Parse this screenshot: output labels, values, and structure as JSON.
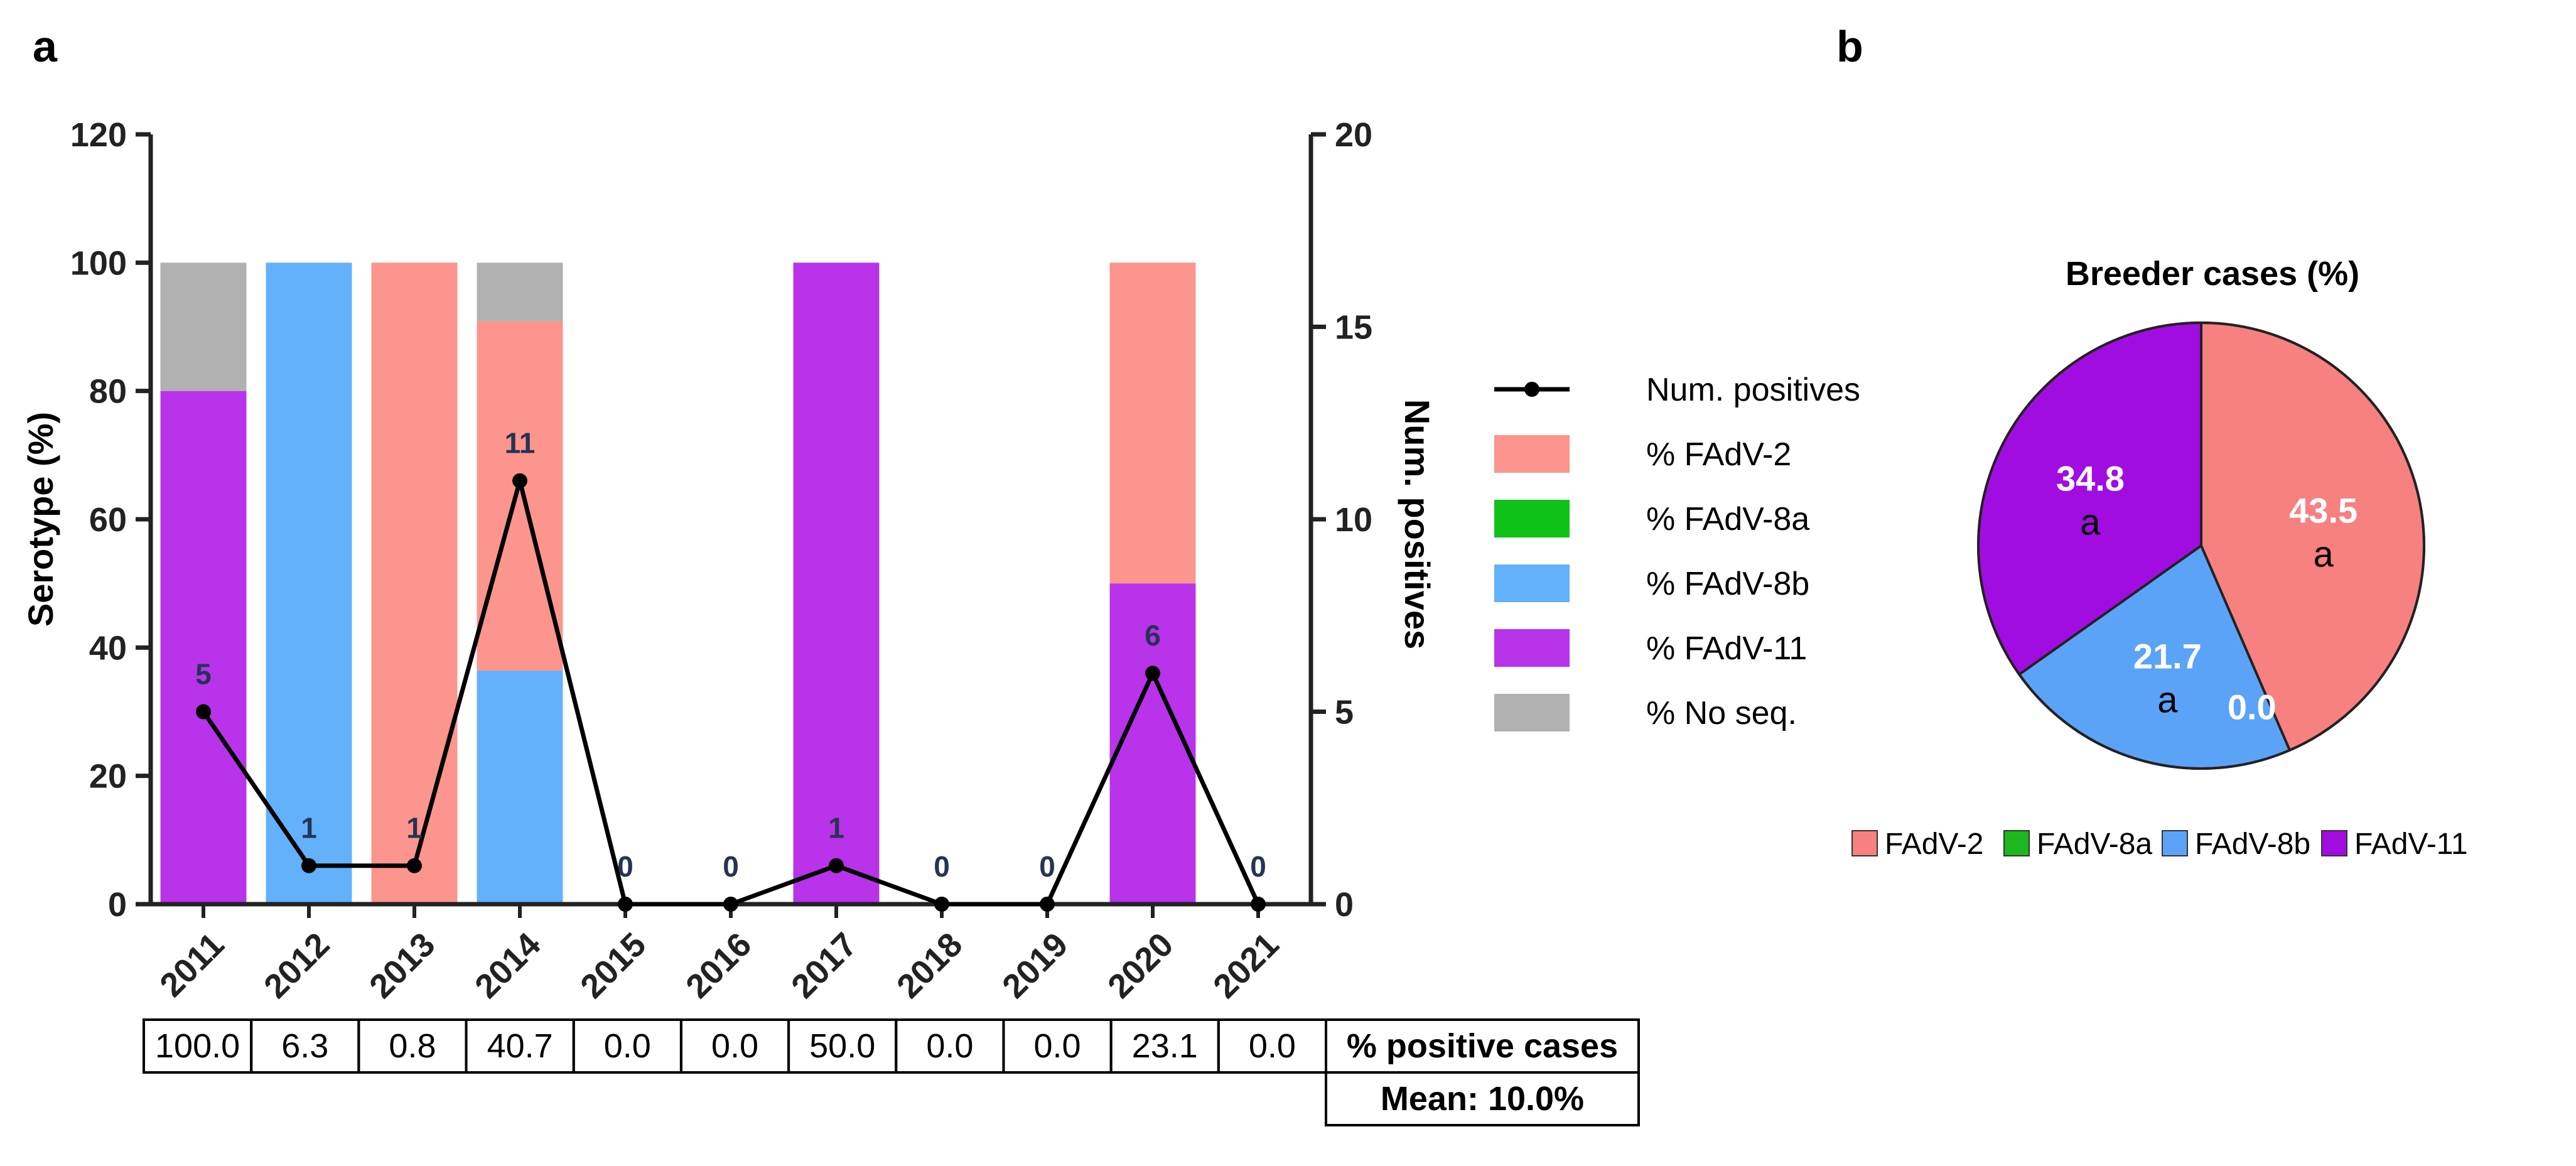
{
  "panels": {
    "a": "a",
    "b": "b"
  },
  "chart_data": [
    {
      "type": "bar",
      "stacked": true,
      "categories": [
        "2011",
        "2012",
        "2013",
        "2014",
        "2015",
        "2016",
        "2017",
        "2018",
        "2019",
        "2020",
        "2021"
      ],
      "series": [
        {
          "name": "% FAdV-11",
          "color": "#b833ea",
          "values": [
            80,
            0,
            0,
            0,
            0,
            0,
            100,
            0,
            0,
            50,
            0
          ]
        },
        {
          "name": "% FAdV-8b",
          "color": "#63b0fb",
          "values": [
            0,
            100,
            0,
            36.4,
            0,
            0,
            0,
            0,
            0,
            0,
            0
          ]
        },
        {
          "name": "% FAdV-8a",
          "color": "#0fc217",
          "values": [
            0,
            0,
            0,
            0,
            0,
            0,
            0,
            0,
            0,
            0,
            0
          ]
        },
        {
          "name": "% FAdV-2",
          "color": "#fc958d",
          "values": [
            0,
            0,
            100,
            54.5,
            0,
            0,
            0,
            0,
            0,
            50,
            0
          ]
        },
        {
          "name": "% No seq.",
          "color": "#b1b1b1",
          "values": [
            20,
            0,
            0,
            9.1,
            0,
            0,
            0,
            0,
            0,
            0,
            0
          ]
        }
      ],
      "line": {
        "name": "Num. positives",
        "color": "#000000",
        "values": [
          5,
          1,
          1,
          11,
          0,
          0,
          1,
          0,
          0,
          6,
          0
        ],
        "labels": [
          "5",
          "1",
          "1",
          "11",
          "0",
          "0",
          "1",
          "0",
          "0",
          "6",
          "0"
        ]
      },
      "ylabel": "Serotype (%)",
      "ylim": [
        0,
        120
      ],
      "yticks": [
        "0",
        "20",
        "40",
        "60",
        "80",
        "100",
        "120"
      ],
      "y2label": "Num. positives",
      "y2lim": [
        0,
        20
      ],
      "y2ticks": [
        "0",
        "5",
        "10",
        "15",
        "20"
      ],
      "legend": {
        "position": "right",
        "items": [
          {
            "name": "Num. positives",
            "kind": "line",
            "color": "#000000"
          },
          {
            "name": "% FAdV-2",
            "kind": "box",
            "color": "#fc958d"
          },
          {
            "name": "% FAdV-8a",
            "kind": "box",
            "color": "#0fc217"
          },
          {
            "name": "% FAdV-8b",
            "kind": "box",
            "color": "#63b0fb"
          },
          {
            "name": "% FAdV-11",
            "kind": "box",
            "color": "#b833ea"
          },
          {
            "name": "% No seq.",
            "kind": "box",
            "color": "#b1b1b1"
          }
        ]
      },
      "table": {
        "values": [
          "100.0",
          "6.3",
          "0.8",
          "40.7",
          "0.0",
          "0.0",
          "50.0",
          "0.0",
          "0.0",
          "23.1",
          "0.0"
        ],
        "row_label": "% positive cases",
        "mean_label": "Mean: 10.0%"
      }
    },
    {
      "type": "pie",
      "title": "Breeder cases (%)",
      "slices": [
        {
          "name": "FAdV-2",
          "value": 43.5,
          "label": "43.5",
          "sig": "a",
          "color": "#f78080"
        },
        {
          "name": "FAdV-8a",
          "value": 0.0,
          "label": "0.0",
          "sig": "",
          "color": "#1fb71f"
        },
        {
          "name": "FAdV-8b",
          "value": 21.7,
          "label": "21.7",
          "sig": "a",
          "color": "#5ba3f7"
        },
        {
          "name": "FAdV-11",
          "value": 34.8,
          "label": "34.8",
          "sig": "a",
          "color": "#a10de0"
        }
      ],
      "legend": [
        "FAdV-2",
        "FAdV-8a",
        "FAdV-8b",
        "FAdV-11"
      ]
    }
  ]
}
